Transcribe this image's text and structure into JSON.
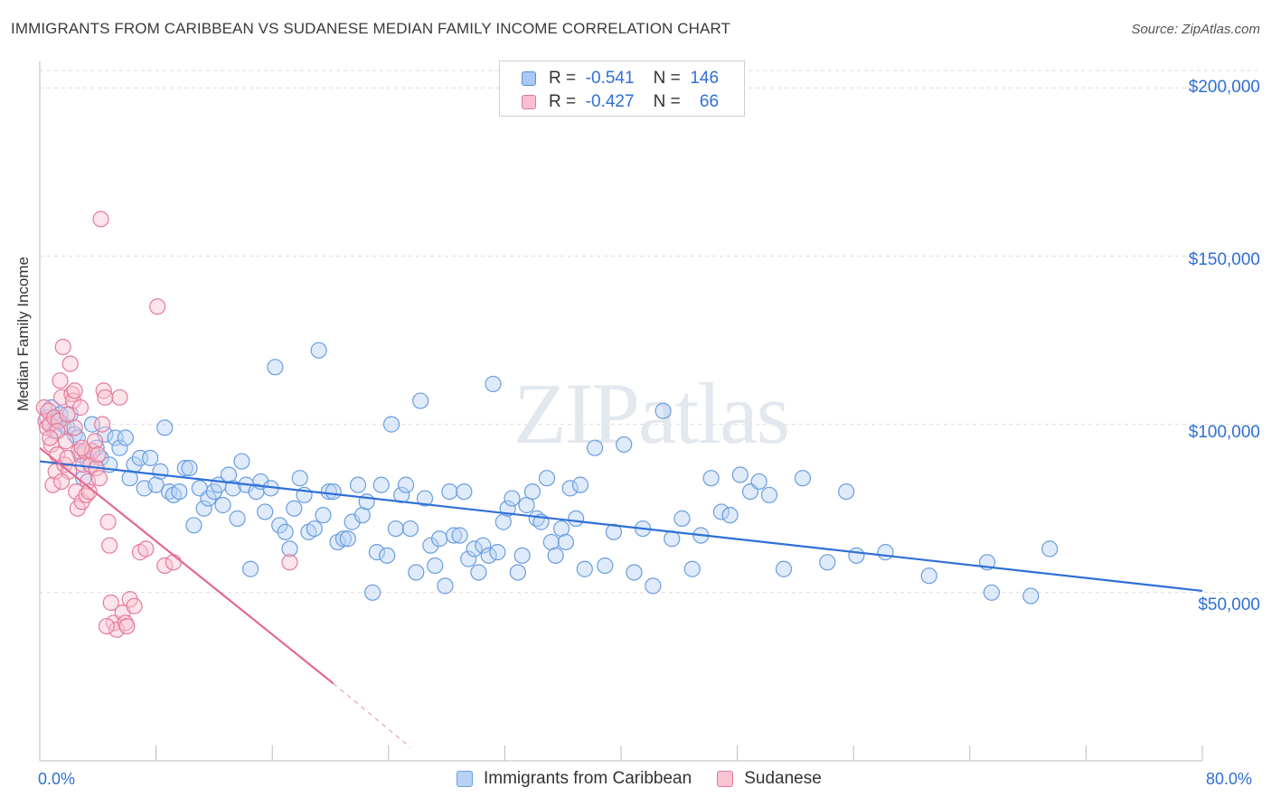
{
  "title": "IMMIGRANTS FROM CARIBBEAN VS SUDANESE MEDIAN FAMILY INCOME CORRELATION CHART",
  "source": "Source: ZipAtlas.com",
  "watermark": "ZIPatlas",
  "legend": {
    "rows": [
      {
        "r_label": "R =",
        "r_value": "-0.541",
        "n_label": "N =",
        "n_value": "146",
        "color": "#a9c8f3",
        "border": "#5b8fd6"
      },
      {
        "r_label": "R =",
        "r_value": "-0.427",
        "n_label": "N =",
        "n_value": "66",
        "color": "#f9bfd0",
        "border": "#e07896"
      }
    ]
  },
  "bottom_legend": {
    "series1": "Immigrants from Caribbean",
    "series2": "Sudanese"
  },
  "chart_data": {
    "type": "scatter",
    "xlabel": "",
    "ylabel": "Median Family Income",
    "xlim": [
      0,
      80
    ],
    "ylim": [
      0,
      210000
    ],
    "x_tick_labels": [
      "0.0%",
      "80.0%"
    ],
    "y_tick_labels": [
      "$50,000",
      "$100,000",
      "$150,000",
      "$200,000"
    ],
    "y_ticks": [
      50000,
      100000,
      150000,
      200000
    ],
    "series": [
      {
        "name": "Immigrants from Caribbean",
        "color": "#6a9de0",
        "fill": "#b8d2f4",
        "trend": {
          "x": [
            0,
            80
          ],
          "y": [
            89000,
            50500
          ]
        },
        "points": [
          [
            0.5,
            102000
          ],
          [
            0.8,
            105000
          ],
          [
            1.0,
            98000
          ],
          [
            1.1,
            101000
          ],
          [
            1.4,
            103000
          ],
          [
            1.6,
            100000
          ],
          [
            1.9,
            99000
          ],
          [
            2.1,
            103000
          ],
          [
            2.4,
            97000
          ],
          [
            2.6,
            96000
          ],
          [
            2.8,
            91000
          ],
          [
            3.0,
            84000
          ],
          [
            3.3,
            89000
          ],
          [
            3.6,
            100000
          ],
          [
            3.9,
            93000
          ],
          [
            4.2,
            90000
          ],
          [
            4.5,
            97000
          ],
          [
            4.8,
            88000
          ],
          [
            5.2,
            96000
          ],
          [
            5.5,
            93000
          ],
          [
            5.9,
            96000
          ],
          [
            6.2,
            84000
          ],
          [
            6.5,
            88000
          ],
          [
            6.9,
            90000
          ],
          [
            7.2,
            81000
          ],
          [
            7.6,
            90000
          ],
          [
            8.0,
            82000
          ],
          [
            8.3,
            86000
          ],
          [
            8.6,
            99000
          ],
          [
            8.9,
            80000
          ],
          [
            9.2,
            79000
          ],
          [
            9.6,
            80000
          ],
          [
            10.0,
            87000
          ],
          [
            10.3,
            87000
          ],
          [
            10.6,
            70000
          ],
          [
            11.0,
            81000
          ],
          [
            11.3,
            75000
          ],
          [
            11.6,
            78000
          ],
          [
            12.0,
            80000
          ],
          [
            12.3,
            82000
          ],
          [
            12.6,
            76000
          ],
          [
            13.0,
            85000
          ],
          [
            13.3,
            81000
          ],
          [
            13.6,
            72000
          ],
          [
            13.9,
            89000
          ],
          [
            14.2,
            82000
          ],
          [
            14.5,
            57000
          ],
          [
            14.9,
            80000
          ],
          [
            15.2,
            83000
          ],
          [
            15.5,
            74000
          ],
          [
            15.9,
            81000
          ],
          [
            16.2,
            117000
          ],
          [
            16.5,
            70000
          ],
          [
            16.9,
            68000
          ],
          [
            17.2,
            63000
          ],
          [
            17.5,
            75000
          ],
          [
            17.9,
            84000
          ],
          [
            18.2,
            79000
          ],
          [
            18.5,
            68000
          ],
          [
            18.9,
            69000
          ],
          [
            19.2,
            122000
          ],
          [
            19.5,
            73000
          ],
          [
            19.9,
            80000
          ],
          [
            20.2,
            80000
          ],
          [
            20.5,
            65000
          ],
          [
            20.9,
            66000
          ],
          [
            21.2,
            66000
          ],
          [
            21.5,
            71000
          ],
          [
            21.9,
            82000
          ],
          [
            22.2,
            73000
          ],
          [
            22.5,
            77000
          ],
          [
            22.9,
            50000
          ],
          [
            23.2,
            62000
          ],
          [
            23.5,
            82000
          ],
          [
            23.9,
            61000
          ],
          [
            24.2,
            100000
          ],
          [
            24.5,
            69000
          ],
          [
            24.9,
            79000
          ],
          [
            25.2,
            82000
          ],
          [
            25.5,
            69000
          ],
          [
            25.9,
            56000
          ],
          [
            26.2,
            107000
          ],
          [
            26.5,
            78000
          ],
          [
            26.9,
            64000
          ],
          [
            27.2,
            58000
          ],
          [
            27.5,
            66000
          ],
          [
            27.9,
            52000
          ],
          [
            28.2,
            80000
          ],
          [
            28.5,
            67000
          ],
          [
            28.9,
            67000
          ],
          [
            29.2,
            80000
          ],
          [
            29.5,
            60000
          ],
          [
            29.9,
            63000
          ],
          [
            30.2,
            56000
          ],
          [
            30.5,
            64000
          ],
          [
            30.9,
            61000
          ],
          [
            31.2,
            112000
          ],
          [
            31.5,
            62000
          ],
          [
            31.9,
            71000
          ],
          [
            32.2,
            75000
          ],
          [
            32.5,
            78000
          ],
          [
            32.9,
            56000
          ],
          [
            33.2,
            61000
          ],
          [
            33.5,
            76000
          ],
          [
            33.9,
            80000
          ],
          [
            34.2,
            72000
          ],
          [
            34.5,
            71000
          ],
          [
            34.9,
            84000
          ],
          [
            35.2,
            65000
          ],
          [
            35.5,
            61000
          ],
          [
            35.9,
            69000
          ],
          [
            36.2,
            65000
          ],
          [
            36.5,
            81000
          ],
          [
            36.9,
            72000
          ],
          [
            37.2,
            82000
          ],
          [
            37.5,
            57000
          ],
          [
            38.2,
            93000
          ],
          [
            38.9,
            58000
          ],
          [
            39.5,
            68000
          ],
          [
            40.2,
            94000
          ],
          [
            40.9,
            56000
          ],
          [
            41.5,
            69000
          ],
          [
            42.2,
            52000
          ],
          [
            42.9,
            104000
          ],
          [
            43.5,
            66000
          ],
          [
            44.2,
            72000
          ],
          [
            44.9,
            57000
          ],
          [
            45.5,
            67000
          ],
          [
            46.2,
            84000
          ],
          [
            46.9,
            74000
          ],
          [
            47.5,
            73000
          ],
          [
            48.2,
            85000
          ],
          [
            48.9,
            80000
          ],
          [
            49.5,
            83000
          ],
          [
            50.2,
            79000
          ],
          [
            51.2,
            57000
          ],
          [
            52.5,
            84000
          ],
          [
            54.2,
            59000
          ],
          [
            55.5,
            80000
          ],
          [
            56.2,
            61000
          ],
          [
            58.2,
            62000
          ],
          [
            61.2,
            55000
          ],
          [
            65.2,
            59000
          ],
          [
            65.5,
            50000
          ],
          [
            68.2,
            49000
          ],
          [
            69.5,
            63000
          ]
        ]
      },
      {
        "name": "Sudanese",
        "color": "#e57a9a",
        "fill": "#f8c3d3",
        "trend": {
          "x": [
            0,
            20.2
          ],
          "y": [
            93000,
            23000
          ]
        },
        "trend_dashed": {
          "x": [
            20.2,
            25.5
          ],
          "y": [
            23000,
            4000
          ]
        },
        "points": [
          [
            0.3,
            105000
          ],
          [
            0.4,
            101000
          ],
          [
            0.5,
            99000
          ],
          [
            0.6,
            104000
          ],
          [
            0.7,
            100000
          ],
          [
            0.8,
            94000
          ],
          [
            0.9,
            82000
          ],
          [
            1.0,
            102000
          ],
          [
            1.1,
            86000
          ],
          [
            1.2,
            91000
          ],
          [
            1.3,
            101000
          ],
          [
            1.4,
            113000
          ],
          [
            1.5,
            108000
          ],
          [
            1.6,
            123000
          ],
          [
            1.7,
            88000
          ],
          [
            1.8,
            95000
          ],
          [
            1.9,
            103000
          ],
          [
            2.0,
            86000
          ],
          [
            2.1,
            118000
          ],
          [
            2.2,
            109000
          ],
          [
            2.3,
            107000
          ],
          [
            2.4,
            99000
          ],
          [
            2.5,
            80000
          ],
          [
            2.6,
            75000
          ],
          [
            2.7,
            92000
          ],
          [
            2.8,
            105000
          ],
          [
            2.9,
            77000
          ],
          [
            3.0,
            88000
          ],
          [
            3.1,
            92000
          ],
          [
            3.2,
            79000
          ],
          [
            3.3,
            83000
          ],
          [
            3.5,
            88000
          ],
          [
            3.6,
            92000
          ],
          [
            3.8,
            95000
          ],
          [
            3.9,
            87000
          ],
          [
            4.0,
            91000
          ],
          [
            4.1,
            84000
          ],
          [
            4.2,
            161000
          ],
          [
            4.3,
            100000
          ],
          [
            4.4,
            110000
          ],
          [
            4.5,
            108000
          ],
          [
            4.7,
            71000
          ],
          [
            4.8,
            64000
          ],
          [
            4.9,
            47000
          ],
          [
            5.1,
            41000
          ],
          [
            5.3,
            39000
          ],
          [
            5.5,
            108000
          ],
          [
            5.7,
            44000
          ],
          [
            5.9,
            41000
          ],
          [
            6.2,
            48000
          ],
          [
            6.5,
            46000
          ],
          [
            6.9,
            62000
          ],
          [
            7.3,
            63000
          ],
          [
            8.1,
            135000
          ],
          [
            8.6,
            58000
          ],
          [
            9.2,
            59000
          ],
          [
            1.2,
            98000
          ],
          [
            1.9,
            90000
          ],
          [
            2.4,
            110000
          ],
          [
            3.4,
            80000
          ],
          [
            4.6,
            40000
          ],
          [
            6.0,
            40000
          ],
          [
            0.7,
            96000
          ],
          [
            1.5,
            83000
          ],
          [
            2.9,
            93000
          ],
          [
            17.2,
            59000
          ]
        ]
      }
    ]
  }
}
